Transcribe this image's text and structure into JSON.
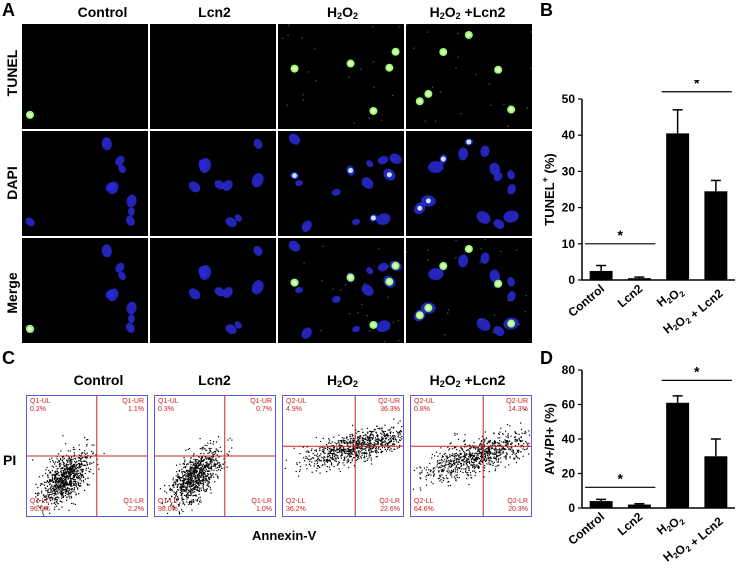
{
  "panels": {
    "a": "A",
    "b": "B",
    "c": "C",
    "d": "D"
  },
  "columns": [
    {
      "main": "Control",
      "sub": "",
      "tail": ""
    },
    {
      "main": "Lcn2",
      "sub": "",
      "tail": ""
    },
    {
      "main": "H",
      "sub": "2",
      "main2": "O",
      "sub2": "2",
      "tail": ""
    },
    {
      "main": "H",
      "sub": "2",
      "main2": "O",
      "sub2": "2",
      "tail": " +Lcn2"
    }
  ],
  "rows": [
    "TUNEL",
    "DAPI",
    "Merge"
  ],
  "flow": {
    "ylabel": "PI",
    "xlabel": "Annexin-V",
    "plots": [
      {
        "ul_name": "Q1-UL",
        "ul_val": "0.2%",
        "ur_name": "Q1-UR",
        "ur_val": "1.1%",
        "ll_name": "Q1-LL",
        "ll_val": "96.6%",
        "lr_name": "Q1-LR",
        "lr_val": "2.2%"
      },
      {
        "ul_name": "Q1-UL",
        "ul_val": "0.3%",
        "ur_name": "Q1-UR",
        "ur_val": "0.7%",
        "ll_name": "Q1-LL",
        "ll_val": "98.0%",
        "lr_name": "Q1-LR",
        "lr_val": "1.0%"
      },
      {
        "ul_name": "Q2-UL",
        "ul_val": "4.9%",
        "ur_name": "Q2-UR",
        "ur_val": "36.3%",
        "ll_name": "Q2-LL",
        "ll_val": "36.2%",
        "lr_name": "Q2-LR",
        "lr_val": "22.6%"
      },
      {
        "ul_name": "Q2-UL",
        "ul_val": "0.8%",
        "ur_name": "Q2-UR",
        "ur_val": "14.3%",
        "ll_name": "Q2-LL",
        "ll_val": "64.6%",
        "lr_name": "Q2-LR",
        "lr_val": "20.3%"
      }
    ]
  },
  "chart_data": [
    {
      "type": "bar",
      "title": "",
      "ylabel_main": "TUNEL",
      "ylabel_sup": "+",
      "ylabel_tail": " (%)",
      "categories": [
        "Control",
        "Lcn2",
        "H2O2",
        "H2O2 + Lcn2"
      ],
      "values": [
        2.5,
        0.5,
        40.5,
        24.5
      ],
      "errors": [
        1.5,
        0.3,
        6.5,
        3.0
      ],
      "ylim": [
        0,
        50
      ],
      "yticks": [
        "0",
        "10",
        "20",
        "30",
        "40",
        "50"
      ],
      "significance": [
        "*",
        "*"
      ]
    },
    {
      "type": "bar",
      "title": "",
      "ylabel_main": "AV+/PI+",
      "ylabel_sup": "",
      "ylabel_tail": " (%)",
      "categories": [
        "Control",
        "Lcn2",
        "H2O2",
        "H2O2 + Lcn2"
      ],
      "values": [
        4,
        2,
        61,
        30
      ],
      "errors": [
        1,
        0.5,
        4,
        10
      ],
      "ylim": [
        0,
        80
      ],
      "yticks": [
        "0",
        "20",
        "40",
        "60",
        "80"
      ],
      "significance": [
        "*",
        "*"
      ]
    }
  ]
}
